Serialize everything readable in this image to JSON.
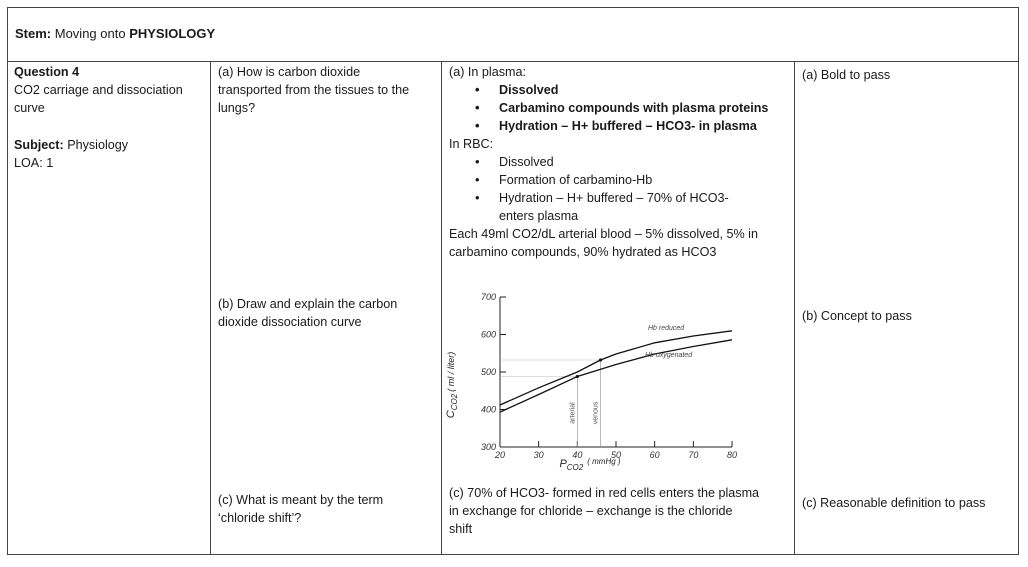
{
  "stem": {
    "label": "Stem:",
    "text": "Moving onto",
    "topic": "PHYSIOLOGY"
  },
  "question": {
    "number": "Question 4",
    "title_line1": "CO2 carriage and dissociation",
    "title_line2": "curve",
    "subject_label": "Subject:",
    "subject_value": "Physiology",
    "loa": "LOA: 1"
  },
  "parts": {
    "a_question_l1": "(a) How is carbon dioxide",
    "a_question_l2": "transported from the tissues to the",
    "a_question_l3": "lungs?",
    "b_question_l1": "(b) Draw and explain the carbon",
    "b_question_l2": "dioxide dissociation curve",
    "c_question_l1": "(c) What is meant by the term",
    "c_question_l2": "‘chloride shift’?"
  },
  "answers": {
    "a_plasma_heading": "(a) In plasma:",
    "a_plasma_items": [
      "Dissolved",
      "Carbamino compounds with plasma proteins",
      "Hydration – H+ buffered – HCO3- in plasma"
    ],
    "a_rbc_heading": "In RBC:",
    "a_rbc_items": [
      "Dissolved",
      "Formation of carbamino-Hb",
      "Hydration – H+ buffered – 70% of HCO3-",
      "enters plasma"
    ],
    "a_summary_l1": "Each 49ml CO2/dL arterial blood – 5% dissolved, 5% in",
    "a_summary_l2": "carbamino compounds, 90% hydrated as HCO3",
    "c_answer_l1": "(c) 70% of HCO3- formed in red cells enters the plasma",
    "c_answer_l2": "in exchange for chloride – exchange is the chloride",
    "c_answer_l3": "shift"
  },
  "marking": {
    "a": "(a) Bold to pass",
    "b": "(b) Concept to pass",
    "c": "(c) Reasonable definition to pass"
  },
  "chart_data": {
    "type": "line",
    "xlabel_main": "P",
    "xlabel_sub": "CO2",
    "xlabel_units": "( mmHg )",
    "ylabel_main": "C",
    "ylabel_sub": "CO2",
    "ylabel_units": "( ml / liter)",
    "xlim": [
      20,
      80
    ],
    "ylim": [
      300,
      700
    ],
    "x_ticks": [
      20,
      30,
      40,
      50,
      60,
      70,
      80
    ],
    "y_ticks": [
      300,
      400,
      500,
      600,
      700
    ],
    "series": [
      {
        "name": "Hb reduced",
        "x": [
          20,
          30,
          40,
          46,
          50,
          60,
          70,
          80
        ],
        "y": [
          412,
          458,
          500,
          532,
          548,
          578,
          596,
          610
        ]
      },
      {
        "name": "Hb oxygenated",
        "x": [
          20,
          30,
          40,
          50,
          60,
          70,
          80
        ],
        "y": [
          393,
          440,
          488,
          520,
          548,
          568,
          586
        ]
      }
    ],
    "markers": [
      {
        "label": "arterial",
        "x": 40
      },
      {
        "label": "venous",
        "x": 46
      }
    ]
  }
}
